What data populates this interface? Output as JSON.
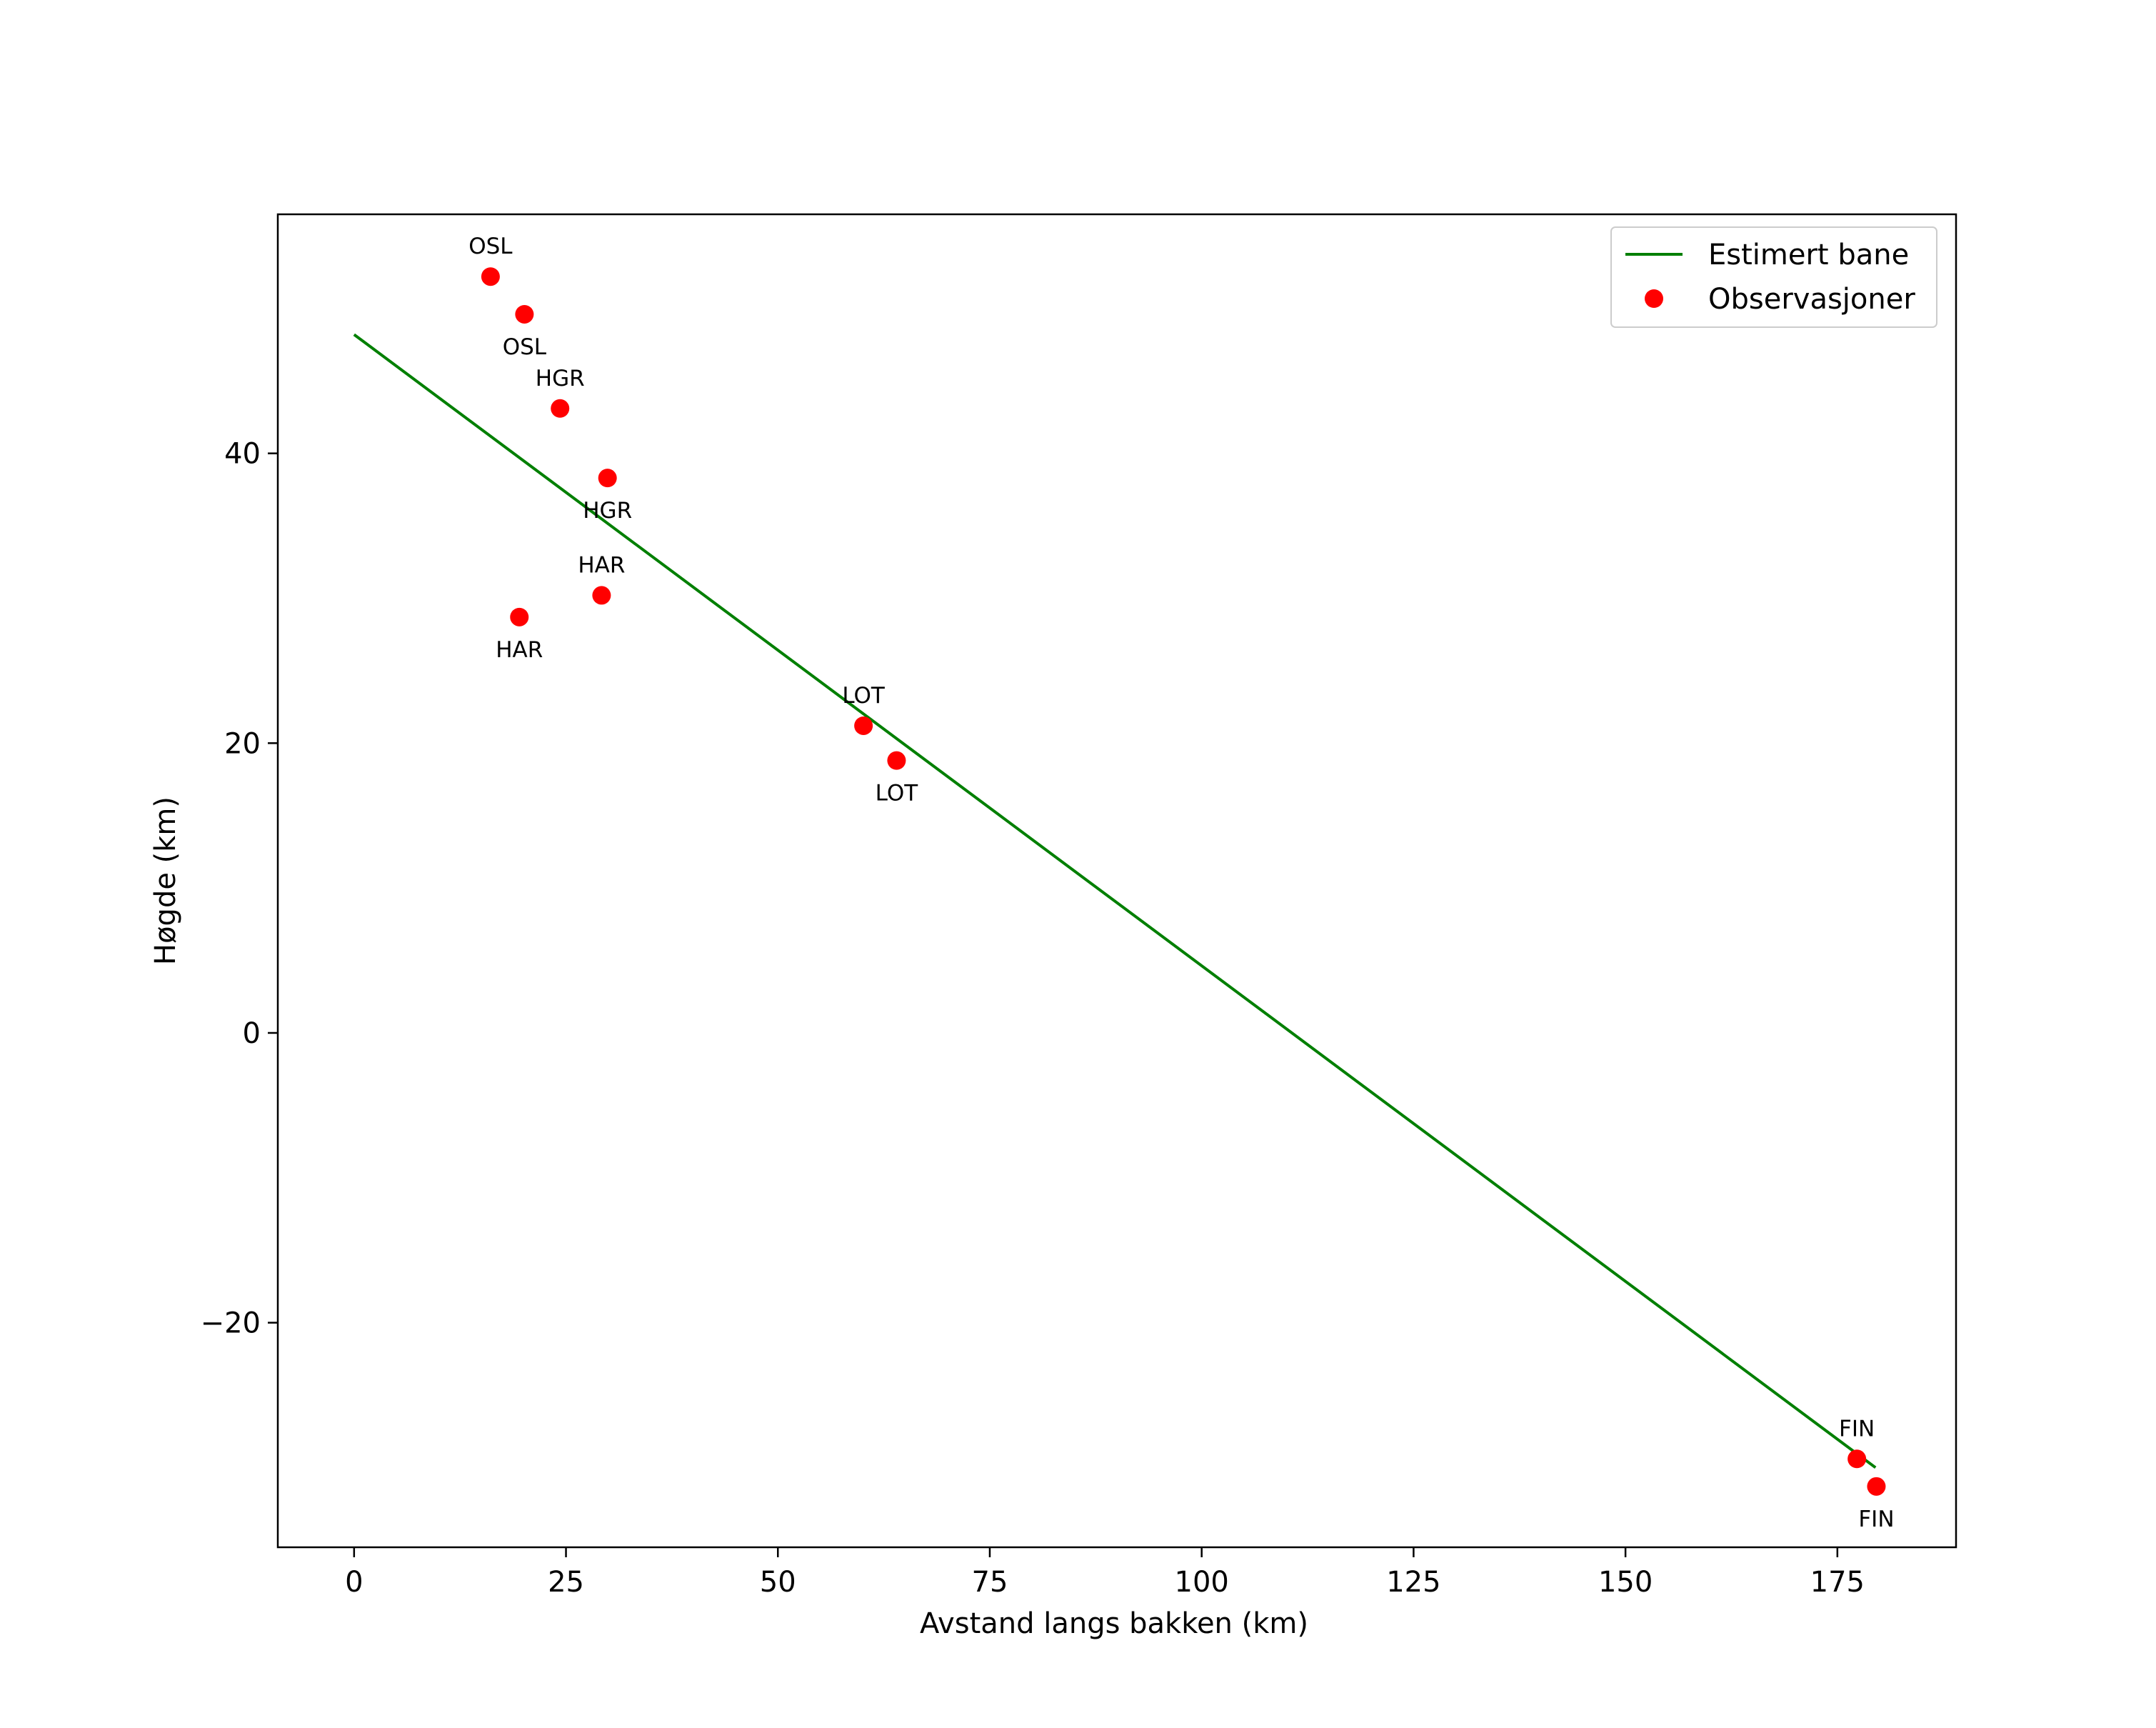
{
  "chart_data": {
    "type": "scatter",
    "title": "",
    "xlabel": "Avstand langs bakken (km)",
    "ylabel": "Høgde (km)",
    "xlim": [
      -9,
      189
    ],
    "ylim": [
      -35.5,
      56.5
    ],
    "xticks": [
      0,
      25,
      50,
      75,
      100,
      125,
      150,
      175
    ],
    "yticks": [
      -20,
      0,
      20,
      40
    ],
    "grid": false,
    "legend_location": "top-right",
    "colors": {
      "line": "#007f00",
      "points": "#ff0000"
    },
    "series": [
      {
        "name": "Estimert bane",
        "kind": "line",
        "x": [
          0,
          179.5
        ],
        "y": [
          48.2,
          -30.0
        ]
      },
      {
        "name": "Observasjoner",
        "kind": "scatter",
        "points": [
          {
            "x": 16.1,
            "y": 52.2,
            "label": "OSL",
            "label_pos": "above"
          },
          {
            "x": 20.1,
            "y": 49.6,
            "label": "OSL",
            "label_pos": "below"
          },
          {
            "x": 24.3,
            "y": 43.1,
            "label": "HGR",
            "label_pos": "above"
          },
          {
            "x": 29.9,
            "y": 38.3,
            "label": "HGR",
            "label_pos": "below"
          },
          {
            "x": 29.2,
            "y": 30.2,
            "label": "HAR",
            "label_pos": "above"
          },
          {
            "x": 19.5,
            "y": 28.7,
            "label": "HAR",
            "label_pos": "below"
          },
          {
            "x": 60.1,
            "y": 21.2,
            "label": "LOT",
            "label_pos": "above"
          },
          {
            "x": 64.0,
            "y": 18.8,
            "label": "LOT",
            "label_pos": "below"
          },
          {
            "x": 177.3,
            "y": -29.4,
            "label": "FIN",
            "label_pos": "above"
          },
          {
            "x": 179.6,
            "y": -31.3,
            "label": "FIN",
            "label_pos": "below"
          }
        ]
      }
    ]
  }
}
